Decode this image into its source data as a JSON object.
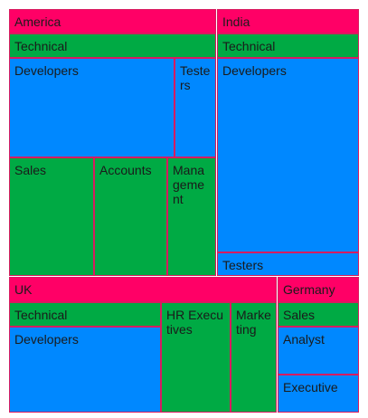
{
  "chart_data": {
    "type": "treemap",
    "colors": {
      "level1": "#ff0066",
      "level2": "#00aa44",
      "level3": "#0088ff",
      "border": "#d81b60"
    },
    "nodes": [
      {
        "id": "america",
        "label": "America",
        "level": 1
      },
      {
        "id": "america-technical",
        "label": "Technical",
        "level": 2
      },
      {
        "id": "america-developers",
        "label": "Developers",
        "level": 3
      },
      {
        "id": "america-testers",
        "label": "Testers",
        "level": 3
      },
      {
        "id": "america-sales",
        "label": "Sales",
        "level": 2
      },
      {
        "id": "america-accounts",
        "label": "Accounts",
        "level": 2
      },
      {
        "id": "america-management",
        "label": "Management",
        "level": 2
      },
      {
        "id": "india",
        "label": "India",
        "level": 1
      },
      {
        "id": "india-technical",
        "label": "Technical",
        "level": 2
      },
      {
        "id": "india-developers",
        "label": "Developers",
        "level": 3
      },
      {
        "id": "india-testers",
        "label": "Testers",
        "level": 3
      },
      {
        "id": "uk",
        "label": "UK",
        "level": 1
      },
      {
        "id": "uk-technical",
        "label": "Technical",
        "level": 2
      },
      {
        "id": "uk-developers",
        "label": "Developers",
        "level": 3
      },
      {
        "id": "uk-hr-executives",
        "label": "HR Executives",
        "level": 2
      },
      {
        "id": "uk-marketing",
        "label": "Marketing",
        "level": 2
      },
      {
        "id": "germany",
        "label": "Germany",
        "level": 1
      },
      {
        "id": "germany-sales",
        "label": "Sales",
        "level": 2
      },
      {
        "id": "germany-analyst",
        "label": "Analyst",
        "level": 3
      },
      {
        "id": "germany-executive",
        "label": "Executive",
        "level": 3
      }
    ]
  }
}
